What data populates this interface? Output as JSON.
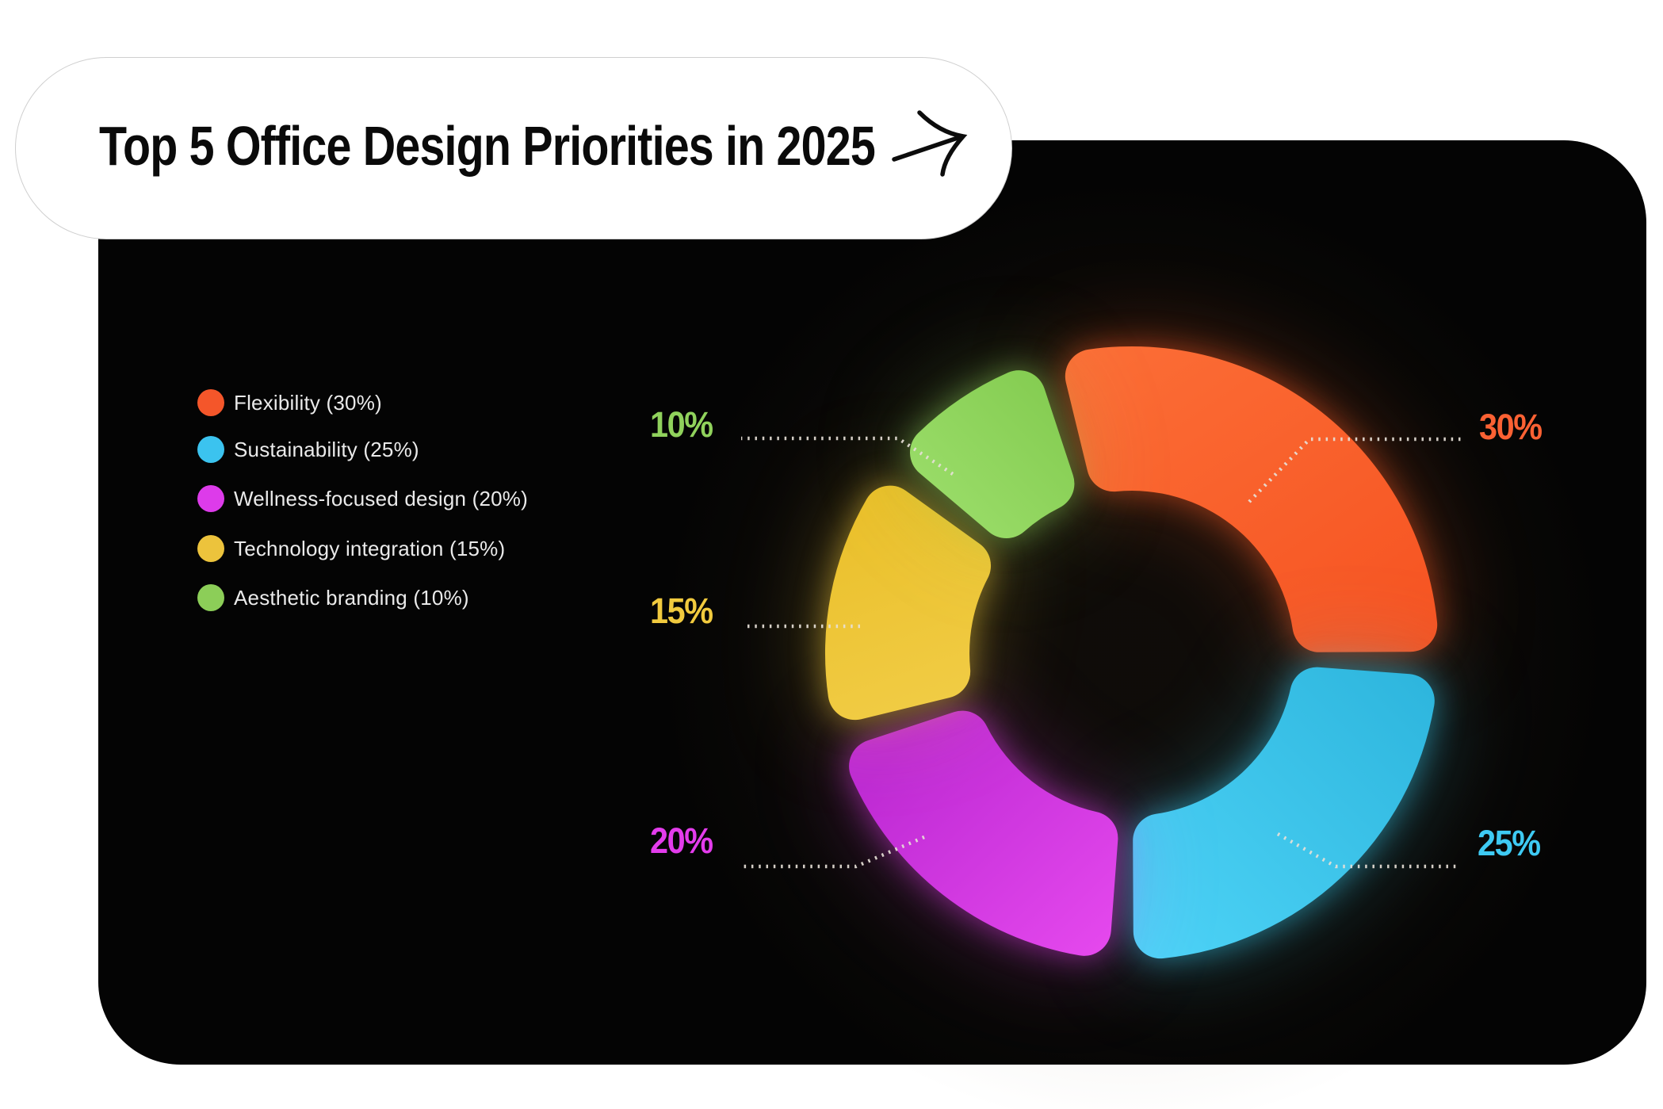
{
  "title": "Top 5 Office Design Priorities in 2025",
  "icons": {
    "arrow": "curved-right-arrow"
  },
  "legend": {
    "items": [
      {
        "label": "Flexibility (30%)",
        "color": "#f4562a"
      },
      {
        "label": "Sustainability (25%)",
        "color": "#3bc3ef"
      },
      {
        "label": "Wellness-focused design (20%)",
        "color": "#dd3bea"
      },
      {
        "label": "Technology integration (15%)",
        "color": "#ecc33c"
      },
      {
        "label": "Aesthetic branding (10%)",
        "color": "#8cce58"
      }
    ]
  },
  "chart_data": {
    "type": "pie",
    "variant": "donut",
    "title": "Top 5 Office Design Priorities in 2025",
    "categories": [
      "Flexibility",
      "Sustainability",
      "Wellness-focused design",
      "Technology integration",
      "Aesthetic branding"
    ],
    "values": [
      30,
      25,
      20,
      15,
      10
    ],
    "unit": "%",
    "labels": [
      "30%",
      "25%",
      "20%",
      "15%",
      "10%"
    ],
    "colors": [
      "#fb5d2b",
      "#3acbf1",
      "#dd38ea",
      "#efc73b",
      "#8fd15b"
    ],
    "gradients": [
      [
        "#fc7038",
        "#f54e1d"
      ],
      [
        "#2db5dd",
        "#4fd5f8"
      ],
      [
        "#be2ad4",
        "#ec4ef2"
      ],
      [
        "#e9bd26",
        "#f3d04d"
      ],
      [
        "#7bc547",
        "#9ddf6c"
      ]
    ],
    "label_colors": [
      "#fb6133",
      "#3ecaf3",
      "#e33cec",
      "#f1ca3e",
      "#90d25c"
    ],
    "start_angle_deg": -16,
    "clockwise": true,
    "gap_deg": 4.6,
    "legend_position": "left",
    "background": "#040404",
    "leader_line_color": "#e6dfd7"
  }
}
